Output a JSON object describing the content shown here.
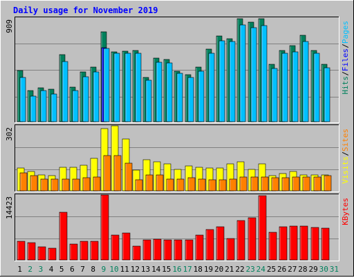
{
  "chart_data": {
    "type": "bar",
    "title": "Daily usage for November 2019",
    "colors": {
      "background": "#c0c0c0",
      "hits": "#00805c",
      "files": "#0000ff",
      "pages": "#00c0ff",
      "visits": "#ffff00",
      "sites": "#ff8000",
      "kbytes": "#ff0000",
      "title": "#0000ff",
      "weekday_label": "#000000",
      "weekend_label": "#00805c"
    },
    "categories": [
      "1",
      "2",
      "3",
      "4",
      "5",
      "6",
      "7",
      "8",
      "9",
      "10",
      "11",
      "12",
      "13",
      "14",
      "15",
      "16",
      "17",
      "18",
      "19",
      "20",
      "21",
      "22",
      "23",
      "24",
      "25",
      "26",
      "27",
      "28",
      "29",
      "30",
      "31"
    ],
    "weekend_days": [
      "2",
      "3",
      "9",
      "10",
      "16",
      "17",
      "23",
      "24",
      "30",
      "31"
    ],
    "panels": [
      {
        "id": "hits",
        "max_label": "909",
        "ylim": [
          0,
          909
        ],
        "legend": [
          {
            "text": "Pages",
            "color": "#00c0ff"
          },
          {
            "text": "Files",
            "color": "#0000ff"
          },
          {
            "text": "Hits",
            "color": "#00805c"
          }
        ],
        "series": [
          {
            "name": "Hits",
            "values": [
              450,
              270,
              295,
              285,
              590,
              300,
              435,
              480,
              785,
              610,
              620,
              625,
              390,
              555,
              545,
              445,
              410,
              480,
              635,
              750,
              730,
              905,
              875,
              900,
              500,
              625,
              665,
              760,
              625,
              505,
              0
            ]
          },
          {
            "name": "Files",
            "values": [
              0,
              0,
              0,
              0,
              0,
              0,
              0,
              0,
              650,
              0,
              0,
              0,
              0,
              0,
              0,
              0,
              0,
              0,
              0,
              0,
              0,
              0,
              0,
              0,
              0,
              0,
              0,
              0,
              0,
              0,
              0
            ]
          },
          {
            "name": "Pages",
            "values": [
              385,
              225,
              270,
              245,
              525,
              270,
              395,
              435,
              640,
              600,
              600,
              600,
              365,
              520,
              515,
              425,
              385,
              445,
              600,
              710,
              700,
              850,
              825,
              845,
              465,
              600,
              615,
              700,
              600,
              475,
              0
            ]
          }
        ]
      },
      {
        "id": "visits",
        "max_label": "302",
        "ylim": [
          0,
          302
        ],
        "legend": [
          {
            "text": "Sites",
            "color": "#ff8000"
          },
          {
            "text": "Visits",
            "color": "#ffff00"
          }
        ],
        "series": [
          {
            "name": "Visits",
            "values": [
              105,
              90,
              75,
              70,
              110,
              110,
              120,
              150,
              288,
              302,
              240,
              95,
              145,
              135,
              125,
              100,
              115,
              110,
              105,
              105,
              125,
              135,
              100,
              125,
              70,
              80,
              90,
              75,
              75,
              75,
              0
            ]
          },
          {
            "name": "Sites",
            "values": [
              85,
              70,
              55,
              55,
              55,
              55,
              60,
              65,
              165,
              165,
              130,
              50,
              75,
              75,
              55,
              55,
              60,
              55,
              50,
              50,
              55,
              65,
              65,
              65,
              60,
              60,
              65,
              65,
              65,
              70,
              0
            ]
          }
        ]
      },
      {
        "id": "kbytes",
        "max_label": "14423",
        "ylim": [
          0,
          14423
        ],
        "legend": [
          {
            "text": "KBytes",
            "color": "#ff0000"
          }
        ],
        "series": [
          {
            "name": "KBytes",
            "values": [
              4200,
              3800,
              2900,
              2600,
              10600,
              3500,
              4200,
              4200,
              14423,
              5500,
              6000,
              3100,
              4400,
              4600,
              4500,
              4400,
              4500,
              5500,
              6700,
              7300,
              4700,
              8700,
              9300,
              14200,
              6100,
              7300,
              7500,
              7500,
              7200,
              7000,
              0
            ]
          }
        ]
      }
    ]
  }
}
